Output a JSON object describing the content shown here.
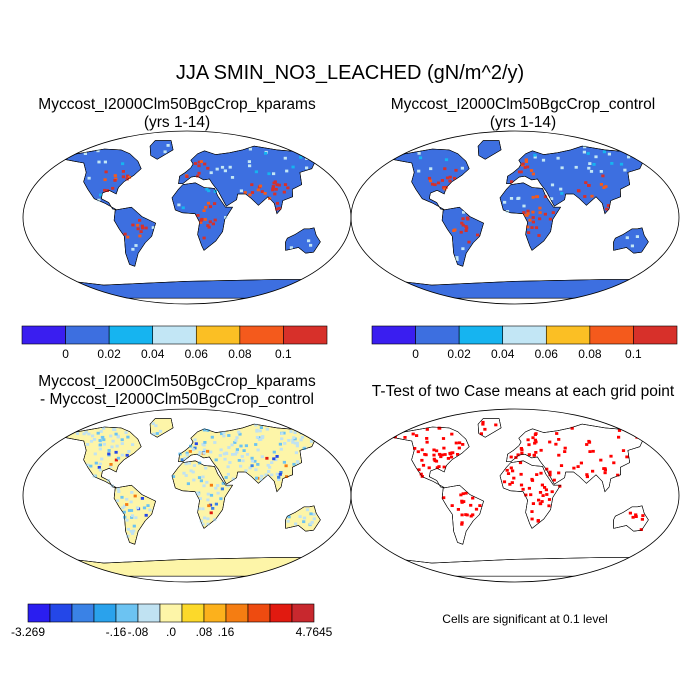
{
  "title": "JJA SMIN_NO3_LEACHED (gN/m^2/y)",
  "panels": [
    {
      "title_line1": "Myccost_I2000Clm50BgcCrop_kparams",
      "title_line2": "(yrs 1-14)"
    },
    {
      "title_line1": "Myccost_I2000Clm50BgcCrop_control",
      "title_line2": "(yrs 1-14)"
    },
    {
      "title_line1": "Myccost_I2000Clm50BgcCrop_kparams",
      "title_line2": "- Myccost_I2000Clm50BgcCrop_control"
    },
    {
      "title_line1": "T-Test of two Case means at each grid point",
      "title_line2": ""
    }
  ],
  "colorbar_abs": {
    "colors": [
      "#3a1ef0",
      "#3d6fe0",
      "#16b4f0",
      "#c2e6f5",
      "#fbbf24",
      "#f45a1c",
      "#d7302a"
    ],
    "labels": [
      "0",
      "0.02",
      "0.04",
      "0.06",
      "0.08",
      "0.1"
    ]
  },
  "colorbar_diff": {
    "colors": [
      "#2a1ef0",
      "#2447e8",
      "#3a82e6",
      "#2aa2ec",
      "#6cc3f2",
      "#c0e2f2",
      "#fdf5a8",
      "#fcd92a",
      "#fcb11c",
      "#f57d12",
      "#ee4b10",
      "#e11a10",
      "#c8282e"
    ],
    "labels": [
      "-3.269",
      "-.16",
      "-.08",
      ".0",
      ".08",
      ".16",
      "4.7645"
    ]
  },
  "ttest": {
    "significance_color": "#ff0000",
    "note": "Cells are significant at 0.1 level"
  },
  "map_colors": {
    "ocean": "#ffffff",
    "outline": "#000000"
  }
}
